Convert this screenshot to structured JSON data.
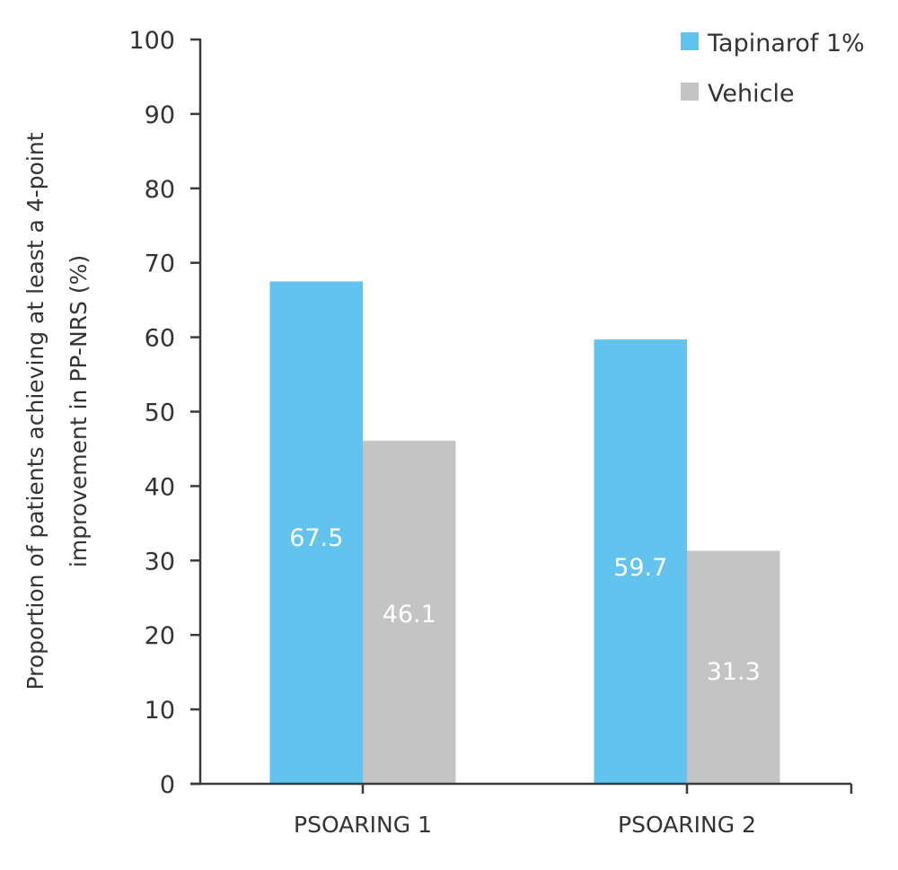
{
  "chart_data": {
    "type": "bar",
    "title": "",
    "xlabel": "",
    "ylabel_lines": [
      "Proportion of patients achieving at least a 4-point",
      "improvement in PP-NRS (%)"
    ],
    "ylabel": "Proportion of patients achieving at least a 4-point improvement in PP-NRS (%)",
    "ylim": [
      0,
      100
    ],
    "yticks": [
      0,
      10,
      20,
      30,
      40,
      50,
      60,
      70,
      80,
      90,
      100
    ],
    "grid": false,
    "legend_position": "top-right",
    "categories": [
      "PSOARING 1",
      "PSOARING 2"
    ],
    "series": [
      {
        "name": "Tapinarof 1%",
        "color": "#62C3EF",
        "values": [
          67.5,
          59.7
        ],
        "labels": [
          "67.5",
          "59.7"
        ]
      },
      {
        "name": "Vehicle",
        "color": "#C4C4C4",
        "values": [
          46.1,
          31.3
        ],
        "labels": [
          "46.1",
          "31.3"
        ]
      }
    ]
  }
}
